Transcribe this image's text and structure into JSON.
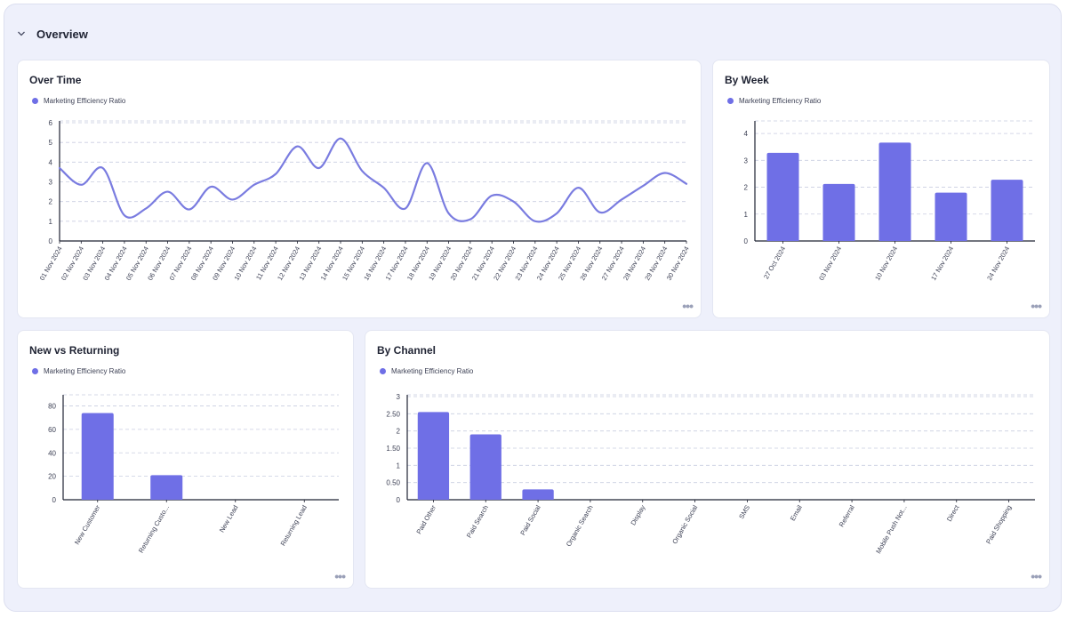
{
  "section": {
    "title": "Overview",
    "icon": "chevron-down-icon"
  },
  "colors": {
    "accent": "#6f6fe6",
    "line": "#7a7ce0",
    "grid": "#c9cde0",
    "axis": "#1f2333",
    "frame_bg": "#eef0fb"
  },
  "more_label": "•••",
  "chart_data": [
    {
      "id": "over_time",
      "title": "Over Time",
      "type": "line",
      "legend": "Marketing Efficiency Ratio",
      "categories": [
        "01 Nov 2024",
        "02 Nov 2024",
        "03 Nov 2024",
        "04 Nov 2024",
        "05 Nov 2024",
        "06 Nov 2024",
        "07 Nov 2024",
        "08 Nov 2024",
        "09 Nov 2024",
        "10 Nov 2024",
        "11 Nov 2024",
        "12 Nov 2024",
        "13 Nov 2024",
        "14 Nov 2024",
        "15 Nov 2024",
        "16 Nov 2024",
        "17 Nov 2024",
        "18 Nov 2024",
        "19 Nov 2024",
        "20 Nov 2024",
        "21 Nov 2024",
        "22 Nov 2024",
        "23 Nov 2024",
        "24 Nov 2024",
        "25 Nov 2024",
        "26 Nov 2024",
        "27 Nov 2024",
        "28 Nov 2024",
        "29 Nov 2024",
        "30 Nov 2024"
      ],
      "values": [
        3.7,
        2.85,
        3.7,
        1.3,
        1.65,
        2.5,
        1.6,
        2.75,
        2.1,
        2.85,
        3.4,
        4.8,
        3.7,
        5.2,
        3.55,
        2.7,
        1.65,
        3.95,
        1.4,
        1.1,
        2.3,
        2.0,
        1.0,
        1.4,
        2.7,
        1.45,
        2.1,
        2.8,
        3.45,
        2.9
      ],
      "yticks": [
        "0",
        "1",
        "2",
        "3",
        "4",
        "5",
        "6"
      ],
      "ylim": [
        0,
        6
      ],
      "grid": true
    },
    {
      "id": "by_week",
      "title": "By Week",
      "type": "bar",
      "legend": "Marketing Efficiency Ratio",
      "categories": [
        "27 Oct 2024",
        "03 Nov 2024",
        "10 Nov 2024",
        "17 Nov 2024",
        "24 Nov 2024"
      ],
      "values": [
        3.28,
        2.12,
        3.66,
        1.8,
        2.28
      ],
      "yticks": [
        "0",
        "1",
        "2",
        "3",
        "4"
      ],
      "ylim": [
        0,
        4.4
      ],
      "grid": true
    },
    {
      "id": "new_vs_returning",
      "title": "New vs Returning",
      "type": "bar",
      "legend": "Marketing Efficiency Ratio",
      "categories": [
        "New Customer",
        "Returning Custo...",
        "New Lead",
        "Returning Lead"
      ],
      "values": [
        74,
        21,
        0,
        0
      ],
      "yticks": [
        "0",
        "20",
        "40",
        "60",
        "80"
      ],
      "ylim": [
        0,
        88
      ],
      "grid": true
    },
    {
      "id": "by_channel",
      "title": "By Channel",
      "type": "bar",
      "legend": "Marketing Efficiency Ratio",
      "categories": [
        "Paid Other",
        "Paid Search",
        "Paid Social",
        "Organic Search",
        "Display",
        "Organic Social",
        "SMS",
        "Email",
        "Referral",
        "Mobile Push Not...",
        "Direct",
        "Paid Shopping"
      ],
      "values": [
        2.55,
        1.9,
        0.3,
        0,
        0,
        0,
        0,
        0,
        0,
        0,
        0,
        0
      ],
      "yticks": [
        "0",
        "0.50",
        "1",
        "1.50",
        "2",
        "2.50",
        "3"
      ],
      "ylim": [
        0,
        3
      ],
      "grid": true
    }
  ]
}
